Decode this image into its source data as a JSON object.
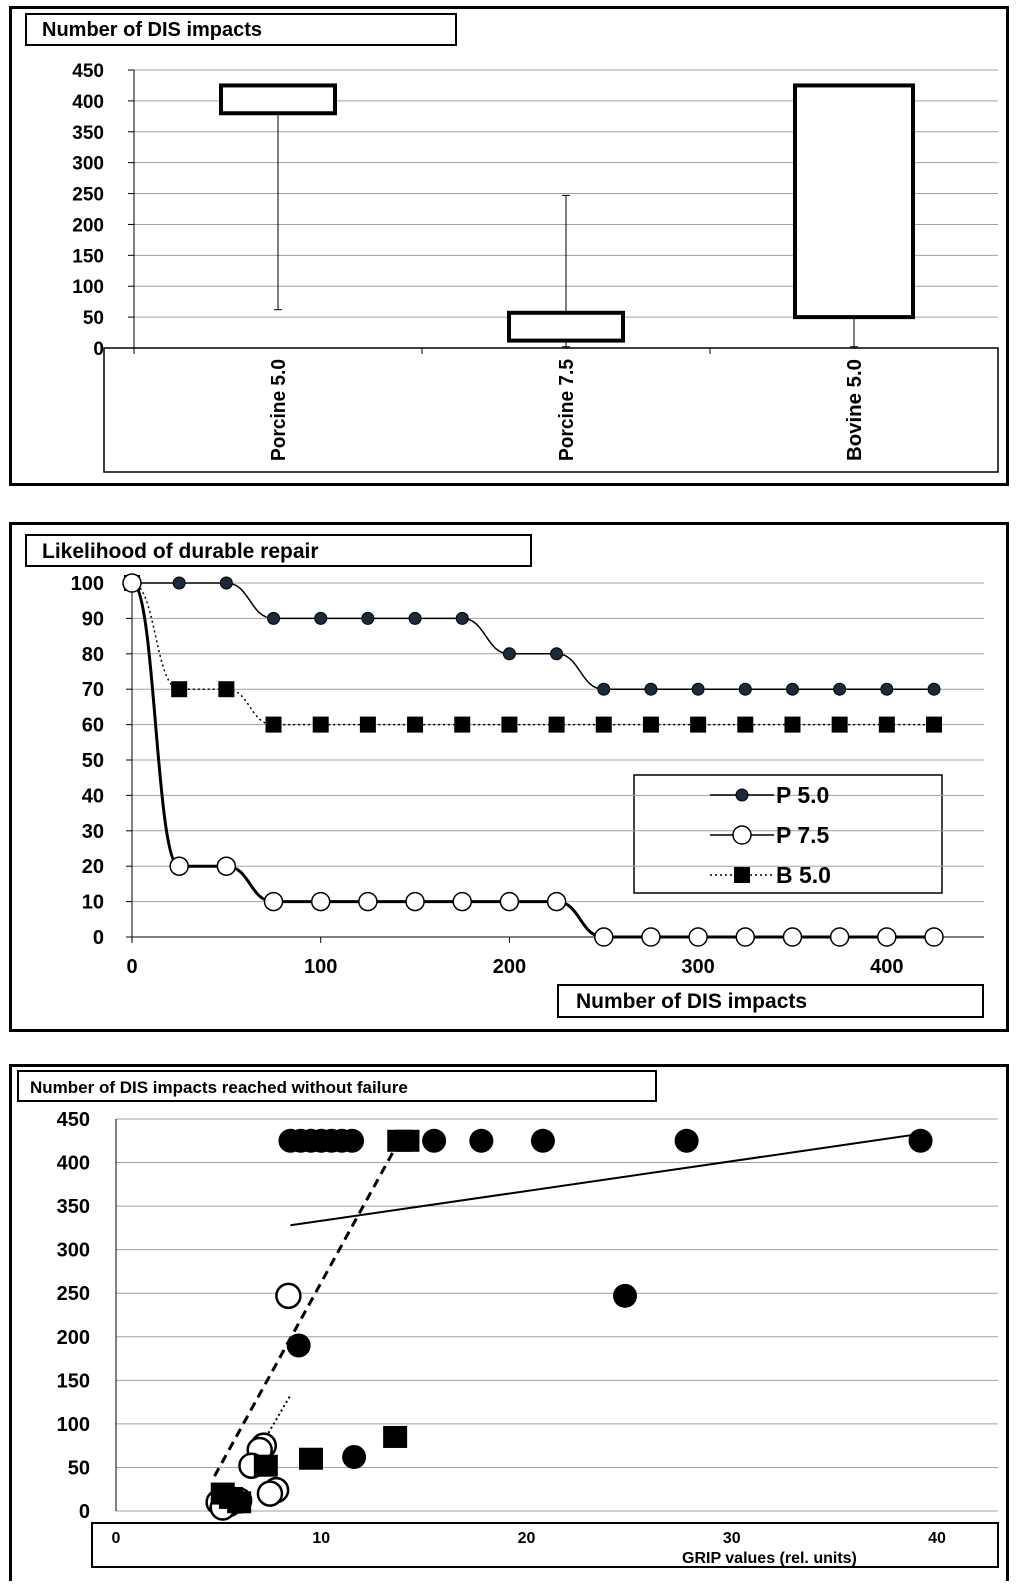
{
  "chart_data": [
    {
      "type": "box",
      "title": "Number of DIS impacts",
      "categories": [
        "Porcine 5.0",
        "Porcine 7.5",
        "Bovine 5.0"
      ],
      "boxes": [
        {
          "name": "Porcine 5.0",
          "min": 62,
          "q1": 380,
          "q3": 425,
          "max": 425
        },
        {
          "name": "Porcine 7.5",
          "min": 2,
          "q1": 12,
          "q3": 57,
          "max": 247
        },
        {
          "name": "Bovine 5.0",
          "min": 2,
          "q1": 50,
          "q3": 425,
          "max": 425
        }
      ],
      "yticks": [
        "0",
        "50",
        "100",
        "150",
        "200",
        "250",
        "300",
        "350",
        "400",
        "450"
      ],
      "ylim": [
        0,
        450
      ],
      "grid": true
    },
    {
      "type": "line",
      "title": "Likelihood of durable repair",
      "xlabel": "Number of DIS impacts",
      "x": [
        0,
        25,
        50,
        75,
        100,
        125,
        150,
        175,
        200,
        225,
        250,
        275,
        300,
        325,
        350,
        375,
        400,
        425
      ],
      "series": [
        {
          "name": "P 5.0",
          "marker": "filled-circle",
          "line": "solid",
          "values": [
            100,
            100,
            100,
            90,
            90,
            90,
            90,
            90,
            80,
            80,
            70,
            70,
            70,
            70,
            70,
            70,
            70,
            70
          ]
        },
        {
          "name": "P 7.5",
          "marker": "open-circle",
          "line": "solid-bold",
          "values": [
            100,
            20,
            20,
            10,
            10,
            10,
            10,
            10,
            10,
            10,
            0,
            0,
            0,
            0,
            0,
            0,
            0,
            0
          ]
        },
        {
          "name": "B 5.0",
          "marker": "filled-square",
          "line": "dotted",
          "values": [
            100,
            70,
            70,
            60,
            60,
            60,
            60,
            60,
            60,
            60,
            60,
            60,
            60,
            60,
            60,
            60,
            60,
            60
          ]
        }
      ],
      "xticks": [
        "0",
        "100",
        "200",
        "300",
        "400"
      ],
      "yticks": [
        "0",
        "10",
        "20",
        "30",
        "40",
        "50",
        "60",
        "70",
        "80",
        "90",
        "100"
      ],
      "xlim": [
        0,
        425
      ],
      "ylim": [
        0,
        100
      ],
      "grid": true,
      "legend": "center-right"
    },
    {
      "type": "scatter",
      "title": "Number of DIS impacts reached without failure",
      "xlabel": "GRIP values (rel. units)",
      "series": [
        {
          "marker": "filled-circle",
          "points": [
            [
              8.5,
              425
            ],
            [
              9,
              425
            ],
            [
              9.5,
              425
            ],
            [
              10,
              425
            ],
            [
              10.5,
              425
            ],
            [
              11,
              425
            ],
            [
              11.5,
              425
            ],
            [
              15.5,
              425
            ],
            [
              17.8,
              425
            ],
            [
              20.8,
              425
            ],
            [
              27.8,
              425
            ],
            [
              39.2,
              425
            ],
            [
              24.8,
              247
            ],
            [
              8.9,
              190
            ],
            [
              11.6,
              62
            ]
          ]
        },
        {
          "marker": "open-circle",
          "points": [
            [
              8.4,
              247
            ],
            [
              7.2,
              75
            ],
            [
              7,
              70
            ],
            [
              6.6,
              52
            ],
            [
              7.8,
              24
            ],
            [
              7.5,
              20
            ],
            [
              5,
              10
            ],
            [
              5.5,
              8
            ],
            [
              5.2,
              4
            ],
            [
              6,
              12
            ]
          ]
        },
        {
          "marker": "filled-square",
          "points": [
            [
              13.8,
              425
            ],
            [
              14.2,
              425
            ],
            [
              13.6,
              85
            ],
            [
              9.5,
              60
            ],
            [
              7.3,
              52
            ],
            [
              5.2,
              20
            ],
            [
              5.6,
              15
            ],
            [
              6,
              10
            ]
          ]
        }
      ],
      "trendlines": [
        {
          "style": "solid",
          "from": [
            8.5,
            328
          ],
          "to": [
            39.2,
            433
          ]
        },
        {
          "style": "dashed",
          "from": [
            4.8,
            40
          ],
          "to": [
            13.8,
            425
          ]
        },
        {
          "style": "dotted",
          "from": [
            6.2,
            40
          ],
          "to": [
            8.5,
            133
          ]
        }
      ],
      "xticks": [
        "0",
        "10",
        "20",
        "30",
        "40"
      ],
      "yticks": [
        "0",
        "50",
        "100",
        "150",
        "200",
        "250",
        "300",
        "350",
        "400",
        "450"
      ],
      "xlim": [
        0,
        43
      ],
      "ylim": [
        0,
        450
      ],
      "grid": true
    }
  ]
}
